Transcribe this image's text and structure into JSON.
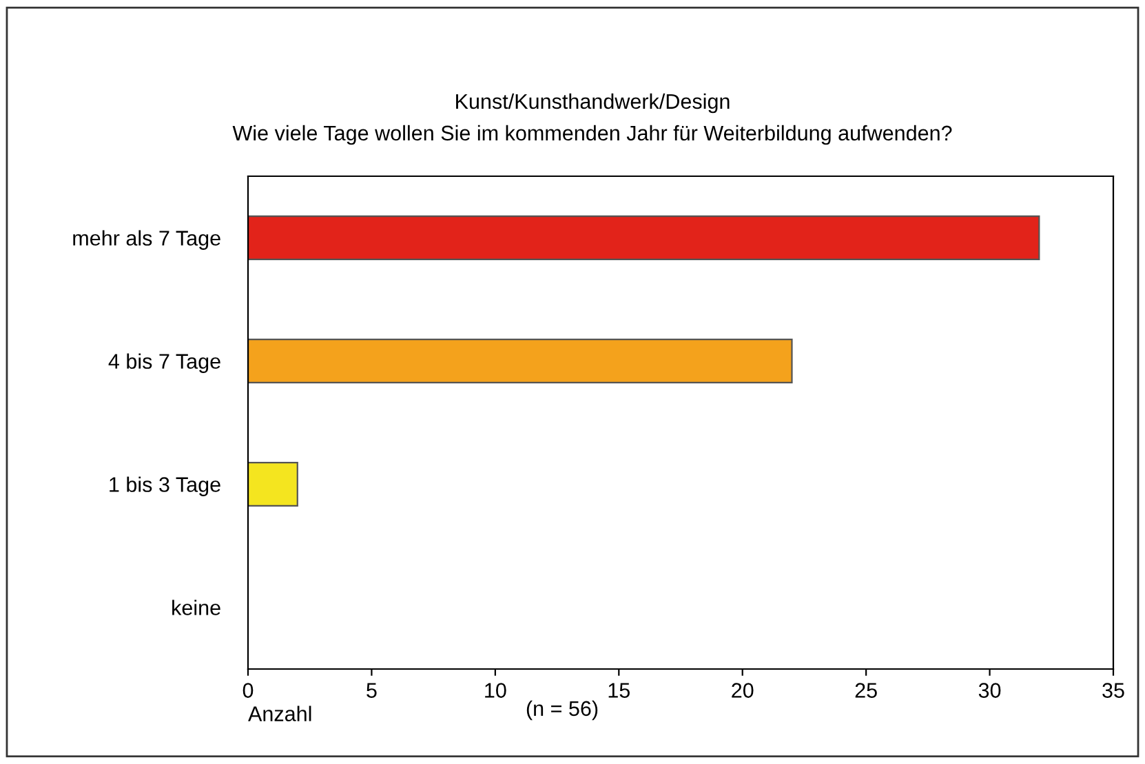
{
  "chart_data": {
    "type": "bar",
    "orientation": "horizontal",
    "title": "Kunst/Kunsthandwerk/Design",
    "subtitle": "Wie viele Tage wollen Sie im kommenden Jahr für Weiterbildung aufwenden?",
    "xlabel": "Anzahl",
    "annotations": [
      "(n = 56)"
    ],
    "categories": [
      "mehr als 7 Tage",
      "4 bis 7 Tage",
      "1 bis 3 Tage",
      "keine"
    ],
    "values": [
      32,
      22,
      2,
      0
    ],
    "colors": [
      "#e2231a",
      "#f4a21c",
      "#f4e51f",
      "#9ec8e8"
    ],
    "xlim": [
      0,
      35
    ],
    "xticks": [
      0,
      5,
      10,
      15,
      20,
      25,
      30,
      35
    ],
    "grid": false,
    "legend": false
  }
}
